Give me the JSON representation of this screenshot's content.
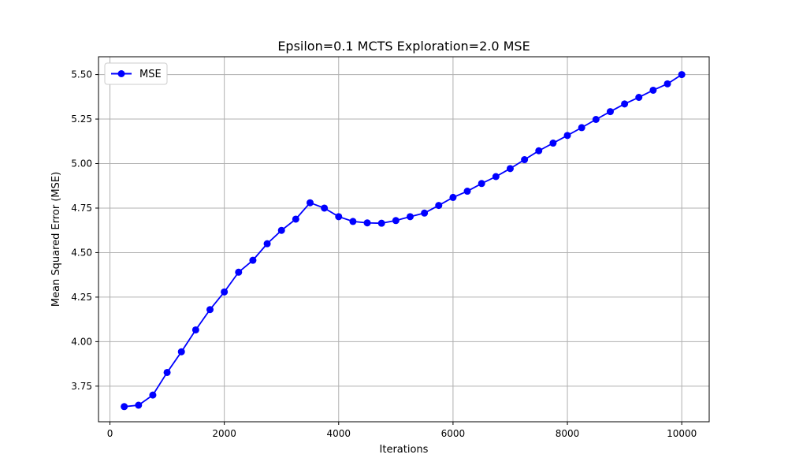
{
  "chart_data": {
    "type": "line",
    "title": "Epsilon=0.1 MCTS Exploration=2.0 MSE",
    "xlabel": "Iterations",
    "ylabel": "Mean Squared Error (MSE)",
    "xlim": [
      -200,
      10480
    ],
    "ylim": [
      3.55,
      5.6
    ],
    "xticks": [
      0,
      2000,
      4000,
      6000,
      8000,
      10000
    ],
    "xtick_labels": [
      "0",
      "2000",
      "4000",
      "6000",
      "8000",
      "10000"
    ],
    "yticks": [
      3.75,
      4.0,
      4.25,
      4.5,
      4.75,
      5.0,
      5.25,
      5.5
    ],
    "ytick_labels": [
      "3.75",
      "4.00",
      "4.25",
      "4.50",
      "4.75",
      "5.00",
      "5.25",
      "5.50"
    ],
    "grid": true,
    "legend_position": "top-left",
    "series": [
      {
        "name": "MSE",
        "color": "#0000ff",
        "marker": "circle",
        "x": [
          250,
          500,
          750,
          1000,
          1250,
          1500,
          1750,
          2000,
          2250,
          2500,
          2750,
          3000,
          3250,
          3500,
          3750,
          4000,
          4250,
          4500,
          4750,
          5000,
          5250,
          5500,
          5750,
          6000,
          6250,
          6500,
          6750,
          7000,
          7250,
          7500,
          7750,
          8000,
          8250,
          8500,
          8750,
          9000,
          9250,
          9500,
          9750,
          10000
        ],
        "y": [
          3.635,
          3.643,
          3.7,
          3.827,
          3.943,
          4.066,
          4.18,
          4.279,
          4.39,
          4.457,
          4.55,
          4.625,
          4.688,
          4.78,
          4.75,
          4.702,
          4.675,
          4.667,
          4.665,
          4.68,
          4.702,
          4.722,
          4.765,
          4.81,
          4.845,
          4.888,
          4.927,
          4.972,
          5.022,
          5.072,
          5.115,
          5.158,
          5.202,
          5.248,
          5.292,
          5.335,
          5.372,
          5.412,
          5.448,
          5.5
        ]
      }
    ]
  }
}
